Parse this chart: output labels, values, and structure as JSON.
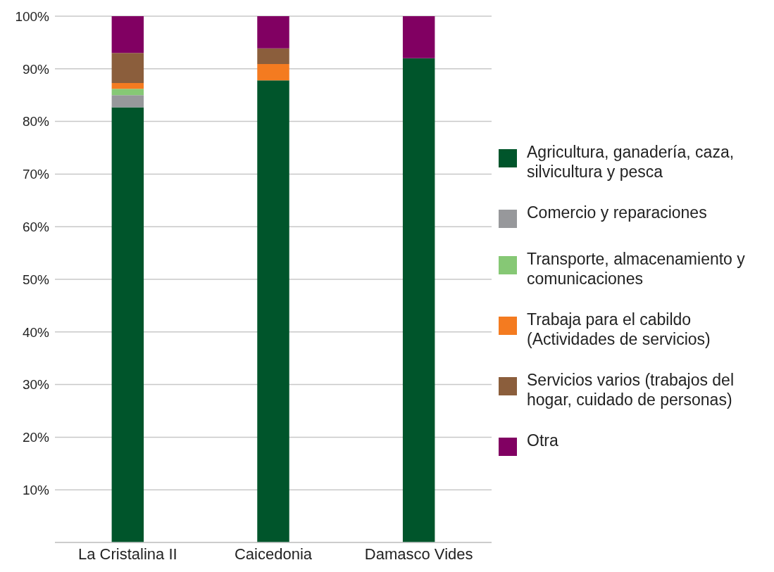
{
  "chart_data": {
    "type": "bar",
    "stacked": true,
    "categories": [
      "La Cristalina II",
      "Caicedonia",
      "Damasco Vides"
    ],
    "series": [
      {
        "name": "Agricultura, ganadería, caza, silvicultura y pesca",
        "color": "#00552b",
        "values": [
          82.7,
          87.8,
          92.0
        ]
      },
      {
        "name": "Comercio y reparaciones",
        "color": "#97989b",
        "values": [
          2.3,
          0,
          0
        ]
      },
      {
        "name": "Transporte, almacenamiento y comunicaciones",
        "color": "#86c875",
        "values": [
          1.2,
          0,
          0
        ]
      },
      {
        "name": "Trabaja para el cabildo (Actividades de servicios)",
        "color": "#f47b20",
        "values": [
          1.1,
          3.1,
          0
        ]
      },
      {
        "name": "Servicios varios (trabajos del hogar, cuidado de personas)",
        "color": "#8b5e3c",
        "values": [
          5.7,
          3.0,
          0
        ]
      },
      {
        "name": "Otra",
        "color": "#810062",
        "values": [
          7.0,
          6.1,
          8.0
        ]
      }
    ],
    "ylim": [
      0,
      100
    ],
    "yticks": [
      {
        "value": 0,
        "label": null
      },
      {
        "value": 10,
        "label": "10%"
      },
      {
        "value": 20,
        "label": "20%"
      },
      {
        "value": 30,
        "label": "30%"
      },
      {
        "value": 40,
        "label": "40%"
      },
      {
        "value": 50,
        "label": "50%"
      },
      {
        "value": 60,
        "label": "60%"
      },
      {
        "value": 70,
        "label": "70%"
      },
      {
        "value": 80,
        "label": "80%"
      },
      {
        "value": 90,
        "label": "90%"
      },
      {
        "value": 100,
        "label": "100%"
      }
    ],
    "grid": "y",
    "legend": "right"
  }
}
